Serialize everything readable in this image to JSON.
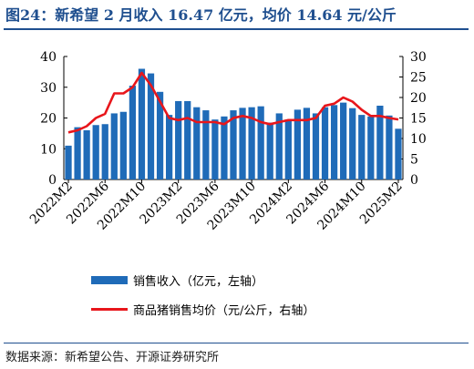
{
  "title": "图24：新希望 2 月收入 16.47 亿元，均价 14.64 元/公斤",
  "source": "数据来源：新希望公告、开源证券研究所",
  "colors": {
    "bar": "#1f6bb8",
    "line": "#e8161b",
    "accent": "#1f4f8f"
  },
  "chart_data": {
    "type": "bar",
    "categories": [
      "2022M2",
      "2022M3",
      "2022M4",
      "2022M5",
      "2022M6",
      "2022M7",
      "2022M8",
      "2022M9",
      "2022M10",
      "2022M11",
      "2022M12",
      "2023M1",
      "2023M2",
      "2023M3",
      "2023M4",
      "2023M5",
      "2023M6",
      "2023M7",
      "2023M8",
      "2023M9",
      "2023M10",
      "2023M11",
      "2023M12",
      "2024M1",
      "2024M2",
      "2024M3",
      "2024M4",
      "2024M5",
      "2024M6",
      "2024M7",
      "2024M8",
      "2024M9",
      "2024M10",
      "2024M11",
      "2024M12",
      "2025M1",
      "2025M2"
    ],
    "tick_labels": [
      "2022M2",
      "2022M6",
      "2022M10",
      "2023M2",
      "2023M6",
      "2023M10",
      "2024M2",
      "2024M6",
      "2024M10",
      "2025M2"
    ],
    "series": [
      {
        "name": "销售收入（亿元，左轴）",
        "axis": "left",
        "values": [
          11,
          17,
          16,
          17.7,
          18,
          21.5,
          22,
          30.5,
          36,
          34.5,
          28.5,
          21,
          25.5,
          25.5,
          23.5,
          22.5,
          19.5,
          20.5,
          22.5,
          23.3,
          23.5,
          23.8,
          18.5,
          21.5,
          19.5,
          22.7,
          23.3,
          21.5,
          23.5,
          24.2,
          25,
          23.2,
          21,
          20.5,
          24,
          20.8,
          16.5
        ]
      },
      {
        "name": "商品猪销售均价（元/公斤，右轴）",
        "axis": "right",
        "values": [
          11.5,
          12,
          13,
          15,
          16,
          21,
          21,
          22.5,
          26,
          23,
          19,
          15,
          14.5,
          15,
          14,
          14,
          14,
          13.5,
          15,
          15.5,
          15,
          14,
          13.5,
          14,
          14.5,
          14.5,
          14.5,
          15,
          18,
          18.5,
          20,
          19,
          17,
          15.5,
          15.5,
          15,
          14.64
        ]
      }
    ],
    "y_left": {
      "min": 0,
      "max": 40,
      "ticks": [
        0,
        10,
        20,
        30,
        40
      ]
    },
    "y_right": {
      "min": 0,
      "max": 30,
      "ticks": [
        0,
        5,
        10,
        15,
        20,
        25,
        30
      ]
    },
    "legend": [
      "销售收入（亿元，左轴）",
      "商品猪销售均价（元/公斤，右轴）"
    ]
  }
}
